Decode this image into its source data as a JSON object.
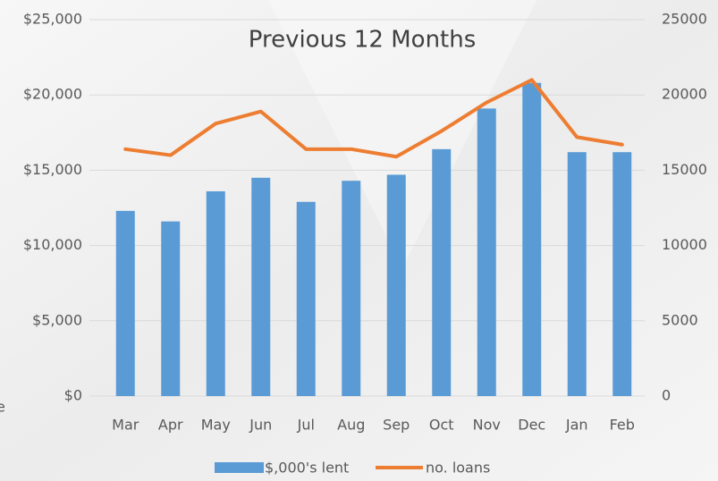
{
  "chart_data": {
    "type": "bar_line",
    "title": "Previous 12 Months",
    "background_text": "e",
    "categories": [
      "Mar",
      "Apr",
      "May",
      "Jun",
      "Jul",
      "Aug",
      "Sep",
      "Oct",
      "Nov",
      "Dec",
      "Jan",
      "Feb"
    ],
    "series": [
      {
        "name": "$,000's lent",
        "type": "bar",
        "color": "#5b9bd5",
        "values": [
          12300,
          11600,
          13600,
          14500,
          12900,
          14300,
          14700,
          16400,
          19100,
          20800,
          16200,
          16200
        ]
      },
      {
        "name": "no. loans",
        "type": "line",
        "axis": "y2",
        "color": "#ed7d31",
        "values": [
          16400,
          16000,
          18100,
          18900,
          16400,
          16400,
          15900,
          17600,
          19500,
          21000,
          17200,
          16700
        ]
      }
    ],
    "ylim": [
      0,
      25000
    ],
    "yticks": [
      {
        "value": 0,
        "label": "$0"
      },
      {
        "value": 5000,
        "label": "$5,000"
      },
      {
        "value": 10000,
        "label": "$10,000"
      },
      {
        "value": 15000,
        "label": "$15,000"
      },
      {
        "value": 20000,
        "label": "$20,000"
      },
      {
        "value": 25000,
        "label": "$25,000"
      }
    ],
    "y2lim": [
      0,
      25000
    ],
    "y2ticks": [
      0,
      5000,
      10000,
      15000,
      20000,
      25000
    ],
    "grid": true,
    "legend": "bottom"
  }
}
